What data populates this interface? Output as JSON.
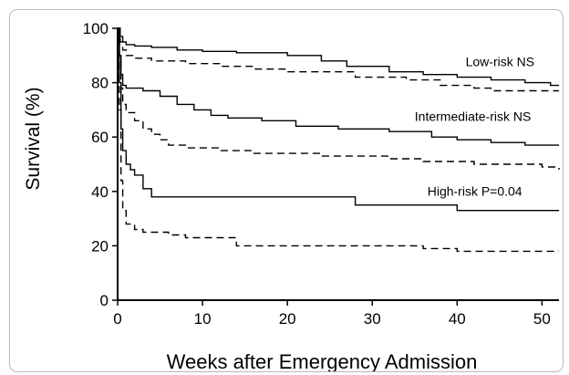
{
  "chart_data": {
    "type": "line",
    "ylabel": "Survival (%)",
    "xlabel": "Weeks after Emergency Admission",
    "xlim": [
      0,
      52
    ],
    "ylim": [
      0,
      100
    ],
    "xticks": [
      0,
      10,
      20,
      30,
      40,
      50
    ],
    "yticks": [
      0,
      20,
      40,
      60,
      80,
      100
    ],
    "grid": false,
    "annotations": [
      {
        "text": "Low-risk NS",
        "x": 41,
        "y": 86
      },
      {
        "text": "Intermediate-risk NS",
        "x": 35,
        "y": 66
      },
      {
        "text": "High-risk  P=0.04",
        "x": 36.5,
        "y": 38.5
      }
    ],
    "series": [
      {
        "style": "solid",
        "color": "#000000",
        "x": [
          0,
          0.3,
          0.6,
          1,
          2,
          4,
          7,
          10,
          14,
          20,
          24,
          27,
          32,
          36,
          40,
          44,
          48,
          51,
          52
        ],
        "y": [
          100,
          97,
          95,
          94,
          93.5,
          93,
          92,
          91.5,
          91,
          90,
          88,
          86,
          84,
          83,
          82,
          81,
          80,
          79,
          79
        ]
      },
      {
        "style": "dashed",
        "color": "#000000",
        "x": [
          0,
          0.3,
          0.6,
          1,
          2,
          4,
          8,
          12,
          16,
          20,
          28,
          34,
          38,
          42,
          44,
          48,
          52
        ],
        "y": [
          100,
          95,
          92,
          90,
          89,
          88,
          87,
          86,
          85,
          84,
          82,
          81,
          79,
          78,
          77,
          77,
          77
        ]
      },
      {
        "style": "solid",
        "color": "#000000",
        "x": [
          0,
          0.2,
          0.4,
          0.6,
          1,
          3,
          5,
          7,
          9,
          11,
          13,
          17,
          21,
          26,
          32,
          37,
          40,
          44,
          48,
          52
        ],
        "y": [
          100,
          90,
          83,
          79,
          78,
          77,
          75,
          72,
          70,
          68,
          67,
          66,
          64,
          63,
          62,
          60,
          59,
          58,
          57,
          57
        ]
      },
      {
        "style": "dashed",
        "color": "#000000",
        "x": [
          0,
          0.2,
          0.4,
          0.6,
          1,
          2,
          3,
          4,
          5,
          6,
          8,
          12,
          16,
          24,
          32,
          36,
          42,
          48,
          50,
          52
        ],
        "y": [
          100,
          88,
          78,
          72,
          69,
          66,
          63,
          61,
          59,
          57,
          56,
          55,
          54,
          53,
          52,
          51,
          50,
          50,
          49,
          48
        ]
      },
      {
        "style": "solid",
        "color": "#000000",
        "x": [
          0,
          0.2,
          0.4,
          0.6,
          1,
          1.5,
          2,
          3,
          4,
          14,
          20,
          28,
          40,
          45,
          52
        ],
        "y": [
          100,
          80,
          63,
          55,
          50,
          48,
          46,
          41,
          38,
          38,
          38,
          35,
          33,
          33,
          33
        ]
      },
      {
        "style": "dashed",
        "color": "#000000",
        "x": [
          0,
          0.2,
          0.4,
          0.6,
          1,
          2,
          3,
          6,
          8,
          14,
          20,
          28,
          36,
          40,
          52
        ],
        "y": [
          100,
          70,
          44,
          33,
          28,
          26,
          25,
          24,
          23,
          20,
          20,
          20,
          19,
          18,
          18
        ]
      }
    ]
  }
}
